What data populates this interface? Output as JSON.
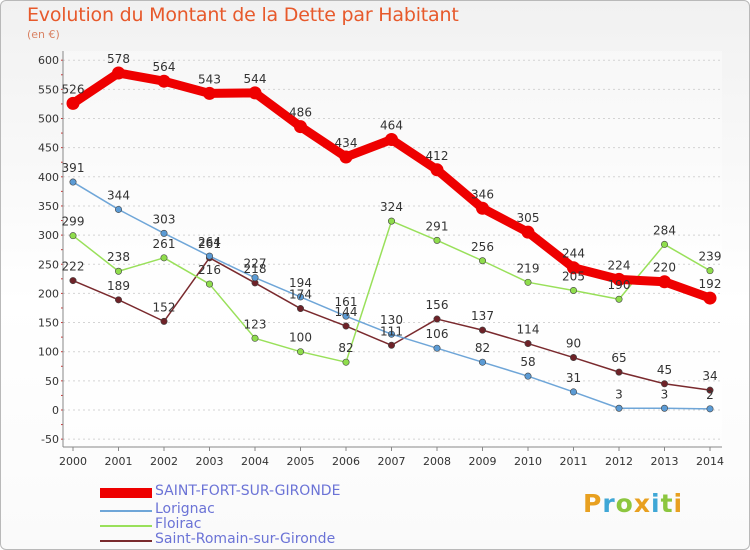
{
  "header": {
    "title": "Evolution du Montant de la Dette par Habitant",
    "unit": "(en €)"
  },
  "logo": {
    "letters": [
      "P",
      "r",
      "o",
      "x",
      "i",
      "t",
      "i"
    ],
    "colors": [
      "#e8a020",
      "#3fa7d6",
      "#8cc63f",
      "#e8a020",
      "#3fa7d6",
      "#8cc63f",
      "#e8a020"
    ]
  },
  "chart_data": {
    "type": "line",
    "x": [
      "2000",
      "2001",
      "2002",
      "2003",
      "2004",
      "2005",
      "2006",
      "2007",
      "2008",
      "2009",
      "2010",
      "2011",
      "2012",
      "2013",
      "2014"
    ],
    "ylim": [
      -50,
      600
    ],
    "yticks": [
      "-50",
      "0",
      "50",
      "100",
      "150",
      "200",
      "250",
      "300",
      "350",
      "400",
      "450",
      "500",
      "550",
      "600"
    ],
    "grid": "horizontal dashed",
    "legend_position": "bottom-left",
    "series": [
      {
        "name": "SAINT-FORT-SUR-GIRONDE",
        "color": "#ee0000",
        "values": [
          526,
          578,
          564,
          543,
          544,
          486,
          434,
          464,
          412,
          346,
          305,
          244,
          224,
          220,
          192
        ]
      },
      {
        "name": "Lorignac",
        "color": "#6fa6d8",
        "values": [
          391,
          344,
          303,
          264,
          227,
          194,
          161,
          130,
          106,
          82,
          58,
          31,
          3,
          3,
          2
        ]
      },
      {
        "name": "Floirac",
        "color": "#99e05a",
        "values": [
          299,
          238,
          261,
          216,
          123,
          100,
          82,
          324,
          291,
          256,
          219,
          205,
          190,
          284,
          239
        ]
      },
      {
        "name": "Saint-Romain-sur-Gironde",
        "color": "#7a2a2e",
        "values": [
          222,
          189,
          152,
          261,
          218,
          174,
          144,
          111,
          156,
          137,
          114,
          90,
          65,
          45,
          34
        ]
      }
    ]
  }
}
